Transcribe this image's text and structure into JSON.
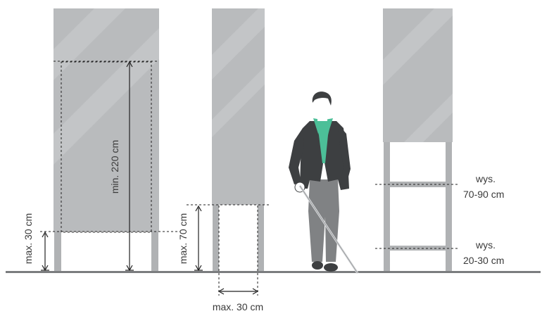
{
  "labels": {
    "min_220": "min. 220 cm",
    "max_30_left": "max. 30 cm",
    "max_70": "max. 70 cm",
    "max_30_bottom": "max. 30 cm",
    "wys_1": "wys.",
    "range_70_90": "70-90 cm",
    "wys_2": "wys.",
    "range_20_30": "20-30 cm"
  },
  "colors": {
    "panel": "#b9bbbd",
    "panel_highlight": "#c6c8ca",
    "post": "#b0b2b4",
    "ground": "#7b7d7f",
    "dim_line": "#222222",
    "jacket": "#3d3f41",
    "shirt": "#4cbf98",
    "trousers": "#808284",
    "skin": "#ffffff",
    "hair": "#3d3f41"
  },
  "icons": {
    "person": "blind-pedestrian-with-white-cane"
  }
}
